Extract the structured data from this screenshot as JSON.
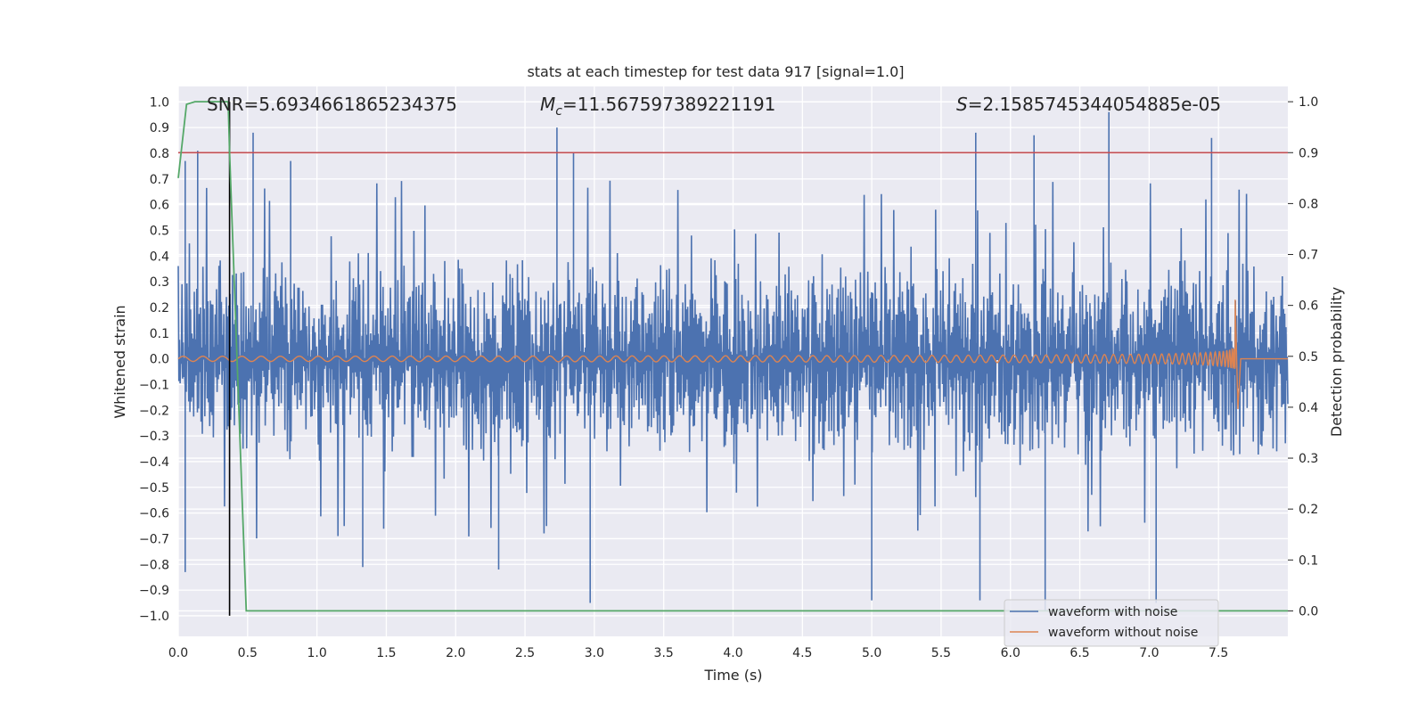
{
  "chart_data": {
    "type": "line",
    "title": "stats at each timestep for test data 917 [signal=1.0]",
    "xlabel": "Time (s)",
    "ylabel": "Whitened strain",
    "y2label": "Detection probability",
    "xlim": [
      0.0,
      8.0
    ],
    "ylim": [
      -1.08,
      1.06
    ],
    "y2lim": [
      -0.05,
      1.03
    ],
    "x_ticks": [
      "0.0",
      "0.5",
      "1.0",
      "1.5",
      "2.0",
      "2.5",
      "3.0",
      "3.5",
      "4.0",
      "4.5",
      "5.0",
      "5.5",
      "6.0",
      "6.5",
      "7.0",
      "7.5"
    ],
    "y_ticks": [
      "1.0",
      "0.9",
      "0.8",
      "0.7",
      "0.6",
      "0.5",
      "0.4",
      "0.3",
      "0.2",
      "0.1",
      "0.0",
      "−0.1",
      "−0.2",
      "−0.3",
      "−0.4",
      "−0.5",
      "−0.6",
      "−0.7",
      "−0.8",
      "−0.9",
      "−1.0"
    ],
    "y2_ticks": [
      "1.0",
      "0.9",
      "0.8",
      "0.7",
      "0.6",
      "0.5",
      "0.4",
      "0.3",
      "0.2",
      "0.1",
      "0.0"
    ],
    "grid": true,
    "annotations": {
      "snr": "SNR=5.6934661865234375",
      "mc_symbol": "M",
      "mc_sub": "c",
      "mc_value": "=11.567597389221191",
      "s_symbol": "S",
      "s_value": "=2.1585745344054885e-05"
    },
    "threshold": {
      "axis": "right",
      "value": 0.9,
      "color": "#c44e52"
    },
    "marker_line": {
      "x": 0.37,
      "y_from": -1.0,
      "y_to": 1.0,
      "color": "#000000"
    },
    "noisy_envelope": {
      "name": "waveform with noise",
      "color": "#4c72b0",
      "typical_amplitude": 0.4,
      "peaks": [
        {
          "x": 0.05,
          "value": 0.77
        },
        {
          "x": 0.14,
          "value": 0.81
        },
        {
          "x": 0.54,
          "value": 0.88
        },
        {
          "x": 0.81,
          "value": 0.77
        },
        {
          "x": 2.73,
          "value": 0.9
        },
        {
          "x": 2.85,
          "value": 0.8
        },
        {
          "x": 5.75,
          "value": 0.88
        },
        {
          "x": 6.17,
          "value": 0.87
        },
        {
          "x": 6.71,
          "value": 0.96
        },
        {
          "x": 7.45,
          "value": 0.86
        },
        {
          "x": 0.05,
          "value": -0.83
        },
        {
          "x": 1.33,
          "value": -0.81
        },
        {
          "x": 2.31,
          "value": -0.82
        },
        {
          "x": 2.97,
          "value": -0.95
        },
        {
          "x": 5.0,
          "value": -0.94
        },
        {
          "x": 5.78,
          "value": -0.94
        },
        {
          "x": 6.25,
          "value": -0.98
        },
        {
          "x": 7.05,
          "value": -0.95
        }
      ]
    },
    "clean_waveform": {
      "name": "waveform without noise",
      "color": "#dd8452",
      "chirp_start_amp": 0.01,
      "chirp_peak_amp": 0.23,
      "merger_time": 7.62,
      "post_merger_value": 0.0
    },
    "detection_probability": {
      "name": "Detection probability",
      "color": "#55a868",
      "x": [
        0.0,
        0.06,
        0.12,
        0.36,
        0.37,
        0.45,
        0.49,
        8.0
      ],
      "values": [
        0.85,
        0.995,
        1.0,
        1.0,
        0.9,
        0.3,
        0.0,
        0.0
      ]
    },
    "legend": {
      "position": "lower-right",
      "entries": [
        {
          "label": "waveform with noise",
          "color": "#4c72b0"
        },
        {
          "label": "waveform without noise",
          "color": "#dd8452"
        }
      ]
    }
  }
}
